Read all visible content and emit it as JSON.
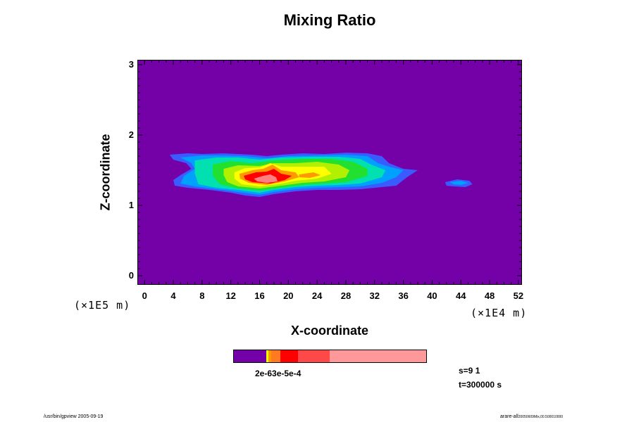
{
  "chart_data": {
    "type": "heatmap",
    "title": "Mixing Ratio",
    "xlabel": "X-coordinate",
    "ylabel": "Z-coordinate",
    "x_unit": "(×1E4 m)",
    "y_unit": "(×1E5 m)",
    "xlim": [
      -1,
      52.5
    ],
    "ylim": [
      -0.13,
      3.07
    ],
    "x_ticks": [
      "0",
      "4",
      "8",
      "12",
      "16",
      "20",
      "24",
      "28",
      "32",
      "36",
      "40",
      "44",
      "48",
      "52"
    ],
    "y_ticks": [
      "0",
      "1",
      "2",
      "3"
    ],
    "background_color": "#7400a8",
    "colorbar": {
      "colors": [
        "#7400a8",
        "#ffff00",
        "#ff9900",
        "#ff7a20",
        "#ff0000",
        "#ff4848",
        "#ff9999"
      ],
      "fractions": [
        0.17,
        0.01,
        0.015,
        0.05,
        0.09,
        0.17,
        0.505
      ],
      "label": "2e-63e-5e-4"
    },
    "cloud_layers": [
      {
        "color": "#3a5cff",
        "polygons": [
          [
            [
              3.5,
              1.72
            ],
            [
              6,
              1.74
            ],
            [
              8,
              1.73
            ],
            [
              11,
              1.74
            ],
            [
              13,
              1.73
            ],
            [
              15,
              1.72
            ],
            [
              17,
              1.7
            ],
            [
              19,
              1.72
            ],
            [
              22,
              1.74
            ],
            [
              25,
              1.73
            ],
            [
              28,
              1.75
            ],
            [
              31,
              1.74
            ],
            [
              33,
              1.7
            ],
            [
              34,
              1.6
            ],
            [
              36,
              1.52
            ],
            [
              38,
              1.5
            ],
            [
              36.5,
              1.4
            ],
            [
              35,
              1.28
            ],
            [
              33,
              1.26
            ],
            [
              30,
              1.23
            ],
            [
              27,
              1.22
            ],
            [
              24,
              1.22
            ],
            [
              21,
              1.2
            ],
            [
              18,
              1.16
            ],
            [
              16,
              1.12
            ],
            [
              14,
              1.14
            ],
            [
              12,
              1.18
            ],
            [
              9,
              1.22
            ],
            [
              6,
              1.25
            ],
            [
              4.2,
              1.28
            ],
            [
              4,
              1.36
            ],
            [
              5,
              1.43
            ],
            [
              6.5,
              1.52
            ],
            [
              5.8,
              1.6
            ],
            [
              4,
              1.65
            ]
          ],
          [
            [
              41.8,
              1.33
            ],
            [
              43.5,
              1.37
            ],
            [
              45.2,
              1.35
            ],
            [
              45.6,
              1.3
            ],
            [
              44.6,
              1.26
            ],
            [
              43,
              1.27
            ],
            [
              42,
              1.28
            ]
          ]
        ]
      },
      {
        "color": "#00a0ff",
        "polygons": [
          [
            [
              5,
              1.68
            ],
            [
              8,
              1.71
            ],
            [
              11,
              1.71
            ],
            [
              14,
              1.7
            ],
            [
              17,
              1.67
            ],
            [
              20,
              1.7
            ],
            [
              24,
              1.71
            ],
            [
              28,
              1.72
            ],
            [
              31,
              1.7
            ],
            [
              32.5,
              1.6
            ],
            [
              34,
              1.55
            ],
            [
              36,
              1.5
            ],
            [
              35,
              1.4
            ],
            [
              33,
              1.32
            ],
            [
              30,
              1.27
            ],
            [
              27,
              1.26
            ],
            [
              24,
              1.25
            ],
            [
              21,
              1.23
            ],
            [
              18,
              1.19
            ],
            [
              16,
              1.15
            ],
            [
              13,
              1.19
            ],
            [
              10,
              1.23
            ],
            [
              7,
              1.27
            ],
            [
              5,
              1.31
            ],
            [
              5.5,
              1.42
            ],
            [
              7,
              1.52
            ],
            [
              6.5,
              1.6
            ]
          ],
          [
            [
              42.5,
              1.33
            ],
            [
              44,
              1.35
            ],
            [
              45,
              1.32
            ],
            [
              44,
              1.29
            ],
            [
              43,
              1.3
            ]
          ]
        ]
      },
      {
        "color": "#00e0b0",
        "polygons": [
          [
            [
              7,
              1.64
            ],
            [
              10,
              1.68
            ],
            [
              13,
              1.68
            ],
            [
              16,
              1.65
            ],
            [
              19,
              1.68
            ],
            [
              23,
              1.69
            ],
            [
              27,
              1.69
            ],
            [
              30,
              1.66
            ],
            [
              31.5,
              1.58
            ],
            [
              33.5,
              1.5
            ],
            [
              33,
              1.4
            ],
            [
              30,
              1.31
            ],
            [
              27,
              1.29
            ],
            [
              24,
              1.28
            ],
            [
              21,
              1.26
            ],
            [
              18,
              1.22
            ],
            [
              16,
              1.18
            ],
            [
              13,
              1.22
            ],
            [
              10,
              1.25
            ],
            [
              7.5,
              1.3
            ],
            [
              7,
              1.45
            ]
          ]
        ]
      },
      {
        "color": "#22e030",
        "polygons": [
          [
            [
              9.5,
              1.58
            ],
            [
              12,
              1.63
            ],
            [
              15,
              1.6
            ],
            [
              18,
              1.64
            ],
            [
              22,
              1.66
            ],
            [
              26,
              1.66
            ],
            [
              29,
              1.62
            ],
            [
              31,
              1.52
            ],
            [
              31,
              1.42
            ],
            [
              28,
              1.33
            ],
            [
              25,
              1.31
            ],
            [
              22,
              1.29
            ],
            [
              19,
              1.25
            ],
            [
              16,
              1.21
            ],
            [
              13,
              1.24
            ],
            [
              10.5,
              1.3
            ],
            [
              9.5,
              1.42
            ]
          ]
        ]
      },
      {
        "color": "#b0f000",
        "polygons": [
          [
            [
              11,
              1.52
            ],
            [
              13,
              1.57
            ],
            [
              16,
              1.56
            ],
            [
              18,
              1.6
            ],
            [
              21,
              1.6
            ],
            [
              24,
              1.62
            ],
            [
              27,
              1.58
            ],
            [
              28.5,
              1.5
            ],
            [
              28,
              1.4
            ],
            [
              25,
              1.34
            ],
            [
              22,
              1.32
            ],
            [
              19,
              1.28
            ],
            [
              16,
              1.24
            ],
            [
              13,
              1.27
            ],
            [
              11.5,
              1.33
            ],
            [
              11,
              1.43
            ]
          ]
        ]
      },
      {
        "color": "#ffff00",
        "polygons": [
          [
            [
              12.5,
              1.47
            ],
            [
              14,
              1.53
            ],
            [
              16,
              1.54
            ],
            [
              17.5,
              1.6
            ],
            [
              19,
              1.55
            ],
            [
              22,
              1.55
            ],
            [
              25,
              1.55
            ],
            [
              26,
              1.45
            ],
            [
              24,
              1.38
            ],
            [
              21,
              1.35
            ],
            [
              19,
              1.31
            ],
            [
              16,
              1.27
            ],
            [
              13.5,
              1.3
            ],
            [
              12.5,
              1.38
            ]
          ]
        ]
      },
      {
        "color": "#ff9900",
        "polygons": [
          [
            [
              13.2,
              1.45
            ],
            [
              15,
              1.5
            ],
            [
              16.5,
              1.52
            ],
            [
              17.8,
              1.58
            ],
            [
              19,
              1.5
            ],
            [
              21,
              1.47
            ],
            [
              21.5,
              1.4
            ],
            [
              19.5,
              1.34
            ],
            [
              17,
              1.29
            ],
            [
              14.5,
              1.32
            ],
            [
              13.3,
              1.38
            ]
          ],
          [
            [
              21.5,
              1.44
            ],
            [
              23.5,
              1.47
            ],
            [
              24.5,
              1.43
            ],
            [
              23,
              1.39
            ],
            [
              21.5,
              1.4
            ]
          ]
        ]
      },
      {
        "color": "#ff0000",
        "polygons": [
          [
            [
              13.8,
              1.42
            ],
            [
              15.5,
              1.47
            ],
            [
              17,
              1.48
            ],
            [
              18,
              1.52
            ],
            [
              19,
              1.45
            ],
            [
              20.5,
              1.42
            ],
            [
              19.5,
              1.36
            ],
            [
              17.5,
              1.31
            ],
            [
              15,
              1.33
            ],
            [
              14,
              1.37
            ]
          ]
        ]
      },
      {
        "color": "#ff8080",
        "polygons": [
          [
            [
              15.2,
              1.38
            ],
            [
              16.5,
              1.42
            ],
            [
              17.5,
              1.44
            ],
            [
              18.3,
              1.4
            ],
            [
              18.5,
              1.34
            ],
            [
              17,
              1.32
            ],
            [
              15.7,
              1.34
            ]
          ]
        ]
      }
    ]
  },
  "info": {
    "step": "s=9 1",
    "time": "t=300000 s"
  },
  "footer": {
    "left": "/usr/bin/gpview 2005-09-19",
    "right_main": "arare-all",
    "right_sub": "20050609Mix,00.500010000"
  }
}
